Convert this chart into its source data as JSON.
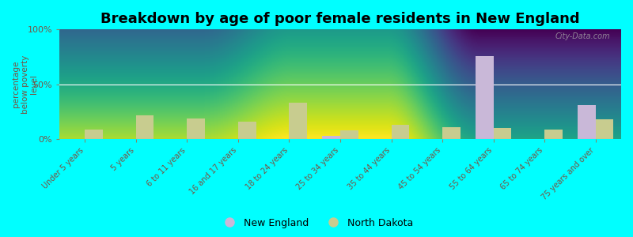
{
  "title": "Breakdown by age of poor female residents in New England",
  "categories": [
    "Under 5 years",
    "5 years",
    "6 to 11 years",
    "16 and 17 years",
    "18 to 24 years",
    "25 to 34 years",
    "35 to 44 years",
    "45 to 54 years",
    "55 to 64 years",
    "65 to 74 years",
    "75 years and over"
  ],
  "new_england": [
    0,
    0,
    0,
    0,
    0,
    3,
    0,
    0,
    76,
    0,
    31
  ],
  "north_dakota": [
    9,
    22,
    19,
    16,
    33,
    8,
    13,
    11,
    10,
    9,
    18
  ],
  "ne_color": "#c9b8d8",
  "nd_color": "#c8cc8f",
  "ylabel": "percentage\nbelow poverty\nlevel",
  "ylim": [
    0,
    100
  ],
  "yticks": [
    0,
    50,
    100
  ],
  "ytick_labels": [
    "0%",
    "50%",
    "100%"
  ],
  "bar_width": 0.35,
  "bg_top": "#e8ede0",
  "bg_bottom": "#f5f8ee",
  "outer_background": "#00ffff",
  "legend_labels": [
    "New England",
    "North Dakota"
  ],
  "watermark": "City-Data.com",
  "title_fontsize": 13,
  "axis_color": "#888866",
  "tick_label_color": "#775544"
}
